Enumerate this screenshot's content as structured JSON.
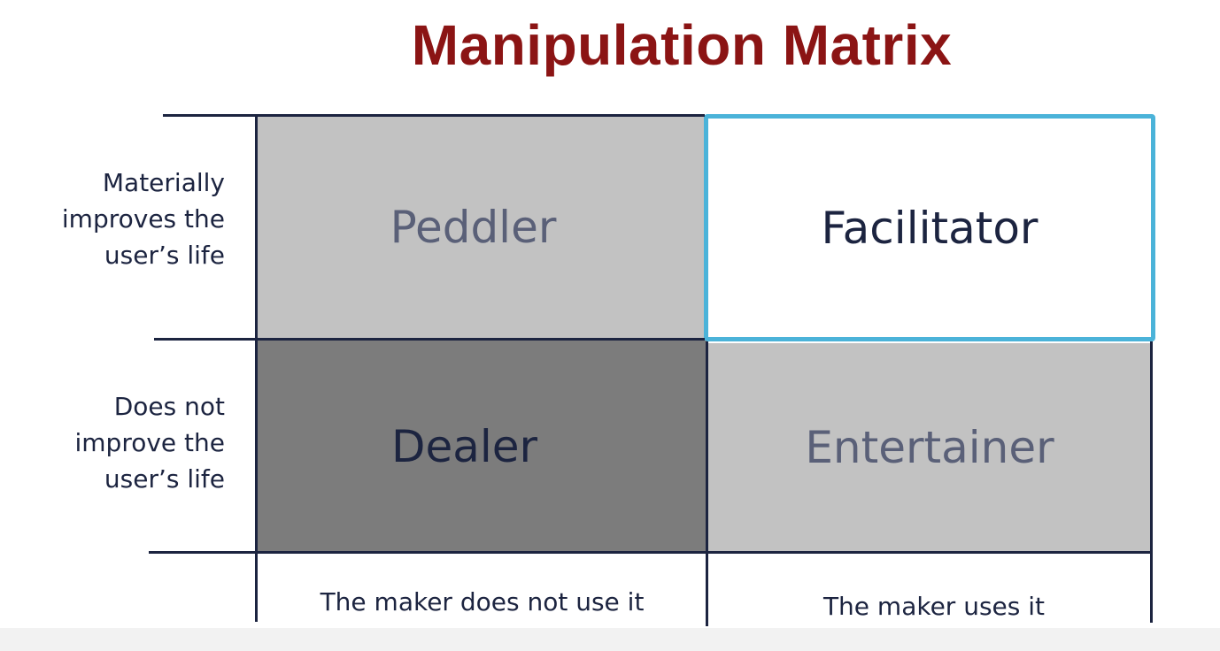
{
  "title": "Manipulation Matrix",
  "row_labels": [
    [
      "Materially",
      "improves the",
      "user’s life"
    ],
    [
      "Does not",
      "improve the",
      "user’s life"
    ]
  ],
  "cells": {
    "top_left": "Peddler",
    "top_right": "Facilitator",
    "bottom_left": "Dealer",
    "bottom_right": "Entertainer"
  },
  "col_labels": [
    "The maker does not use it",
    "The maker uses it"
  ],
  "colors": {
    "title": "#8b1414",
    "highlight_border": "#4bb3d9",
    "light_cell": "#c2c2c2",
    "dark_cell": "#7c7c7c",
    "text": "#1c2440"
  }
}
